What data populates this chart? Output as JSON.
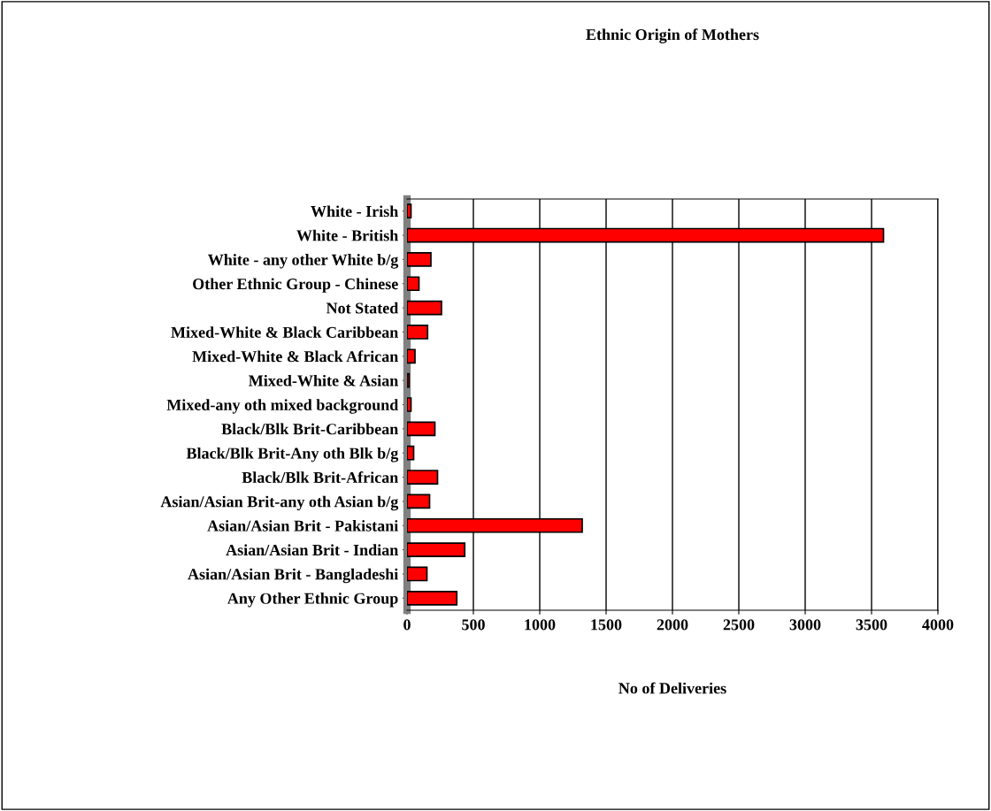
{
  "chart_data": {
    "type": "bar",
    "orientation": "horizontal",
    "title": "Ethnic Origin of Mothers",
    "xlabel": "No of Deliveries",
    "categories": [
      "White - Irish",
      "White - British",
      "White - any other White b/g",
      "Other Ethnic Group - Chinese",
      "Not Stated",
      "Mixed-White & Black Caribbean",
      "Mixed-White & Black African",
      "Mixed-White & Asian",
      "Mixed-any oth mixed background",
      "Black/Blk Brit-Caribbean",
      "Black/Blk Brit-Any oth Blk b/g",
      "Black/Blk Brit-African",
      "Asian/Asian Brit-any oth Asian b/g",
      "Asian/Asian Brit - Pakistani",
      "Asian/Asian Brit - Indian",
      "Asian/Asian Brit - Bangladeshi",
      "Any Other Ethnic Group"
    ],
    "values": [
      30,
      3590,
      180,
      90,
      260,
      155,
      60,
      15,
      30,
      210,
      50,
      230,
      170,
      1320,
      435,
      150,
      375
    ],
    "color": "#ff0000",
    "xlim": [
      0,
      4000
    ],
    "xticks": [
      0,
      500,
      1000,
      1500,
      2000,
      2500,
      3000,
      3500,
      4000
    ],
    "grid": "x",
    "legend": false
  }
}
